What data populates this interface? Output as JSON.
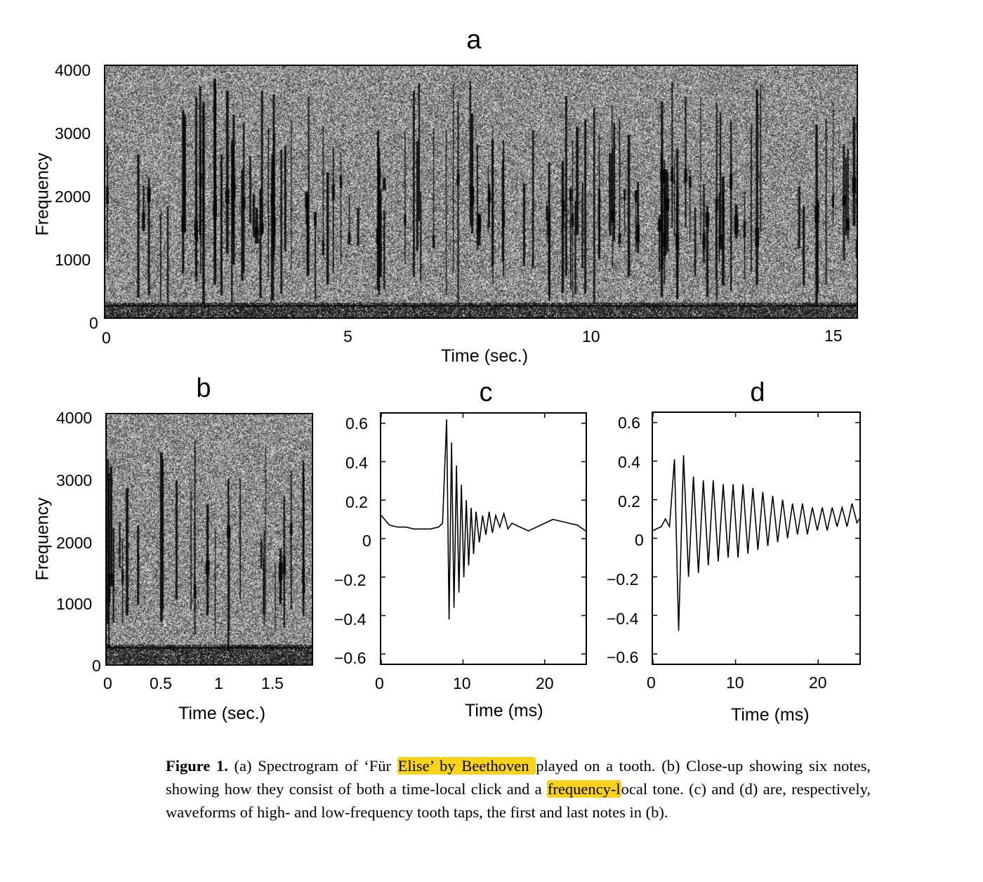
{
  "figure": {
    "panels": {
      "a": {
        "letter": "a",
        "ylabel": "Frequency",
        "xlabel": "Time (sec.)",
        "yticks": [
          "4000",
          "3000",
          "2000",
          "1000",
          "0"
        ],
        "xticks": [
          "0",
          "5",
          "10",
          "15"
        ]
      },
      "b": {
        "letter": "b",
        "ylabel": "Frequency",
        "xlabel": "Time (sec.)",
        "yticks": [
          "4000",
          "3000",
          "2000",
          "1000",
          "0"
        ],
        "xticks": [
          "0",
          "0.5",
          "1",
          "1.5"
        ]
      },
      "c": {
        "letter": "c",
        "xlabel": "Time (ms)",
        "yticks": [
          "0.6",
          "0.4",
          "0.2",
          "0",
          "−0.2",
          "−0.4",
          "−0.6"
        ],
        "xticks": [
          "0",
          "10",
          "20"
        ]
      },
      "d": {
        "letter": "d",
        "xlabel": "Time (ms)",
        "yticks": [
          "0.6",
          "0.4",
          "0.2",
          "0",
          "−0.2",
          "−0.4",
          "−0.6"
        ],
        "xticks": [
          "0",
          "10",
          "20"
        ]
      }
    },
    "caption": {
      "label": "Figure 1.",
      "part1": "(a) Spectrogram of ‘Für ",
      "highlight1": "Elise’ by Beethoven ",
      "part2": "played on a tooth. (b) Close-up showing six notes, showing how they consist of both a time-local click and a ",
      "highlight2": "frequency-l",
      "part3": "ocal tone. (c) and (d) are, respectively, waveforms of high- and low-frequency tooth taps, the first and last notes in (b)."
    },
    "highlight_color": "#f9d21c"
  },
  "chart_data": [
    {
      "type": "heatmap",
      "panel": "a",
      "xlabel": "Time (sec.)",
      "ylabel": "Frequency",
      "xlim": [
        0,
        15.6
      ],
      "ylim": [
        0,
        4000
      ],
      "xticks": [
        0,
        5,
        10,
        15
      ],
      "yticks": [
        0,
        1000,
        2000,
        3000,
        4000
      ]
    },
    {
      "type": "heatmap",
      "panel": "b",
      "xlabel": "Time (sec.)",
      "ylabel": "Frequency",
      "xlim": [
        0,
        1.85
      ],
      "ylim": [
        0,
        4000
      ],
      "xticks": [
        0,
        0.5,
        1,
        1.5
      ],
      "yticks": [
        0,
        1000,
        2000,
        3000,
        4000
      ]
    },
    {
      "type": "line",
      "panel": "c",
      "xlabel": "Time (ms)",
      "xlim": [
        0,
        25
      ],
      "ylim": [
        -0.65,
        0.65
      ],
      "xticks": [
        0,
        10,
        20
      ],
      "yticks": [
        -0.6,
        -0.4,
        -0.2,
        0,
        0.2,
        0.4,
        0.6
      ],
      "x": [
        0,
        1,
        2,
        3,
        4,
        5,
        6,
        7,
        7.5,
        8,
        8.3,
        8.6,
        8.9,
        9.2,
        9.5,
        9.8,
        10.1,
        10.4,
        10.7,
        11,
        11.3,
        11.6,
        12,
        12.4,
        12.8,
        13.2,
        13.6,
        14,
        14.5,
        15,
        15.5,
        16,
        17,
        18,
        19,
        20,
        21,
        22,
        23,
        24,
        25
      ],
      "y": [
        0.12,
        0.07,
        0.06,
        0.06,
        0.05,
        0.05,
        0.05,
        0.06,
        0.08,
        0.62,
        -0.42,
        0.5,
        -0.36,
        0.38,
        -0.28,
        0.28,
        -0.2,
        0.2,
        -0.14,
        0.16,
        -0.08,
        0.14,
        -0.02,
        0.12,
        0.02,
        0.14,
        0.03,
        0.12,
        0.06,
        0.13,
        0.05,
        0.08,
        0.06,
        0.04,
        0.06,
        0.08,
        0.1,
        0.09,
        0.08,
        0.07,
        0.04
      ]
    },
    {
      "type": "line",
      "panel": "d",
      "xlabel": "Time (ms)",
      "xlim": [
        0,
        25
      ],
      "ylim": [
        -0.65,
        0.65
      ],
      "xticks": [
        0,
        10,
        20
      ],
      "yticks": [
        -0.6,
        -0.4,
        -0.2,
        0,
        0.2,
        0.4,
        0.6
      ],
      "x": [
        0,
        1,
        1.5,
        2,
        2.6,
        3.1,
        3.7,
        4.3,
        4.9,
        5.5,
        6.1,
        6.7,
        7.3,
        7.9,
        8.5,
        9.1,
        9.7,
        10.3,
        10.9,
        11.5,
        12.1,
        12.7,
        13.3,
        13.9,
        14.5,
        15.1,
        15.7,
        16.3,
        16.9,
        17.5,
        18.1,
        18.7,
        19.3,
        19.9,
        20.5,
        21.1,
        21.7,
        22.3,
        22.9,
        23.5,
        24.1,
        24.7,
        25
      ],
      "y": [
        0.04,
        0.06,
        0.1,
        0.06,
        0.41,
        -0.48,
        0.43,
        -0.2,
        0.32,
        -0.18,
        0.3,
        -0.14,
        0.3,
        -0.12,
        0.28,
        -0.1,
        0.28,
        -0.1,
        0.28,
        -0.08,
        0.26,
        -0.06,
        0.24,
        -0.04,
        0.22,
        -0.02,
        0.2,
        0.0,
        0.18,
        0.02,
        0.18,
        0.02,
        0.16,
        0.04,
        0.16,
        0.04,
        0.16,
        0.06,
        0.16,
        0.06,
        0.18,
        0.08,
        0.1
      ]
    }
  ]
}
